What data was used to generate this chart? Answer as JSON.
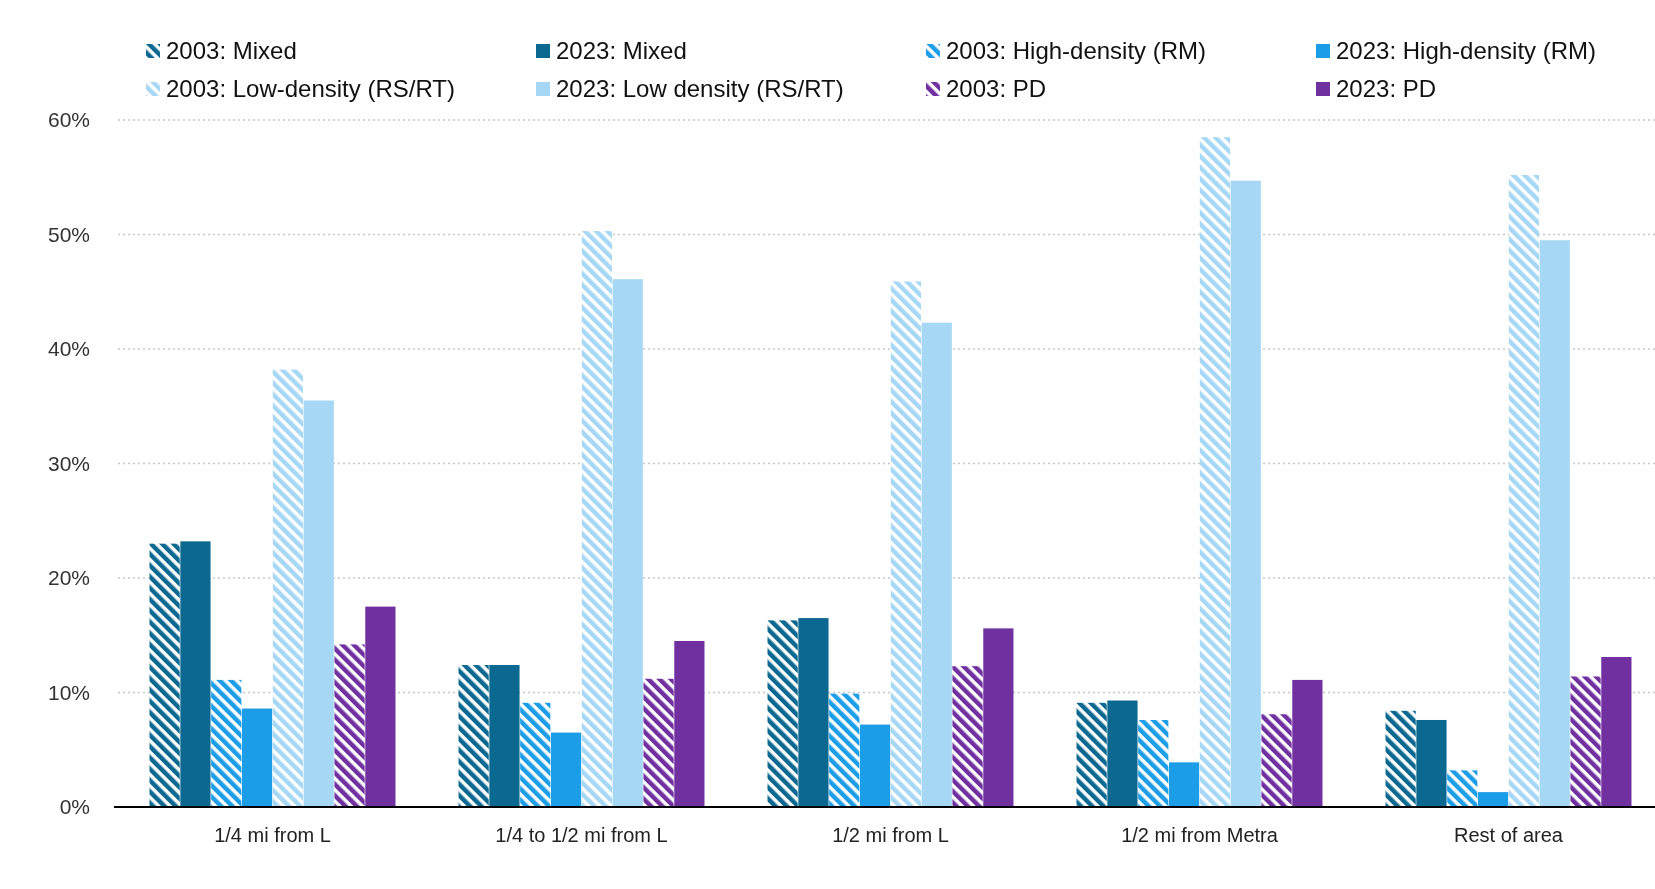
{
  "chart_data": {
    "type": "bar",
    "categories": [
      "1/4 mi from L",
      "1/4 to 1/2 mi from L",
      "1/2 mi from L",
      "1/2 mi from Metra",
      "Rest of area"
    ],
    "series": [
      {
        "name": "2003: Mixed",
        "color": "#0b6890",
        "values": [
          23.0,
          12.4,
          16.3,
          9.1,
          8.4
        ]
      },
      {
        "name": "2023: Mixed",
        "color": "#0b6890",
        "values": [
          23.2,
          12.4,
          16.5,
          9.3,
          7.6
        ]
      },
      {
        "name": "2003: High-density (RM)",
        "color": "#1b9de8",
        "values": [
          11.1,
          9.1,
          9.9,
          7.6,
          3.2
        ]
      },
      {
        "name": "2023: High-density (RM)",
        "color": "#1b9de8",
        "values": [
          8.6,
          6.5,
          7.2,
          3.9,
          1.3
        ]
      },
      {
        "name": "2003: Low-density (RS/RT)",
        "color": "#a6d8f5",
        "values": [
          38.2,
          50.3,
          45.9,
          58.5,
          55.2
        ]
      },
      {
        "name": "2023: Low density (RS/RT)",
        "color": "#a6d8f5",
        "values": [
          35.5,
          46.1,
          42.3,
          54.7,
          49.5
        ]
      },
      {
        "name": "2003: PD",
        "color": "#7030a0",
        "values": [
          14.2,
          11.2,
          12.3,
          8.1,
          11.4
        ]
      },
      {
        "name": "2023: PD",
        "color": "#7030a0",
        "values": [
          17.5,
          14.5,
          15.6,
          11.1,
          13.1
        ]
      }
    ],
    "ylim": [
      0,
      60
    ],
    "yticks": [
      {
        "value": 0,
        "label": "0%"
      },
      {
        "value": 10,
        "label": "10%"
      },
      {
        "value": 20,
        "label": "20%"
      },
      {
        "value": 30,
        "label": "30%"
      },
      {
        "value": 40,
        "label": "40%"
      },
      {
        "value": 50,
        "label": "50%"
      },
      {
        "value": 60,
        "label": "60%"
      }
    ],
    "grid": "y",
    "legend": "top"
  }
}
